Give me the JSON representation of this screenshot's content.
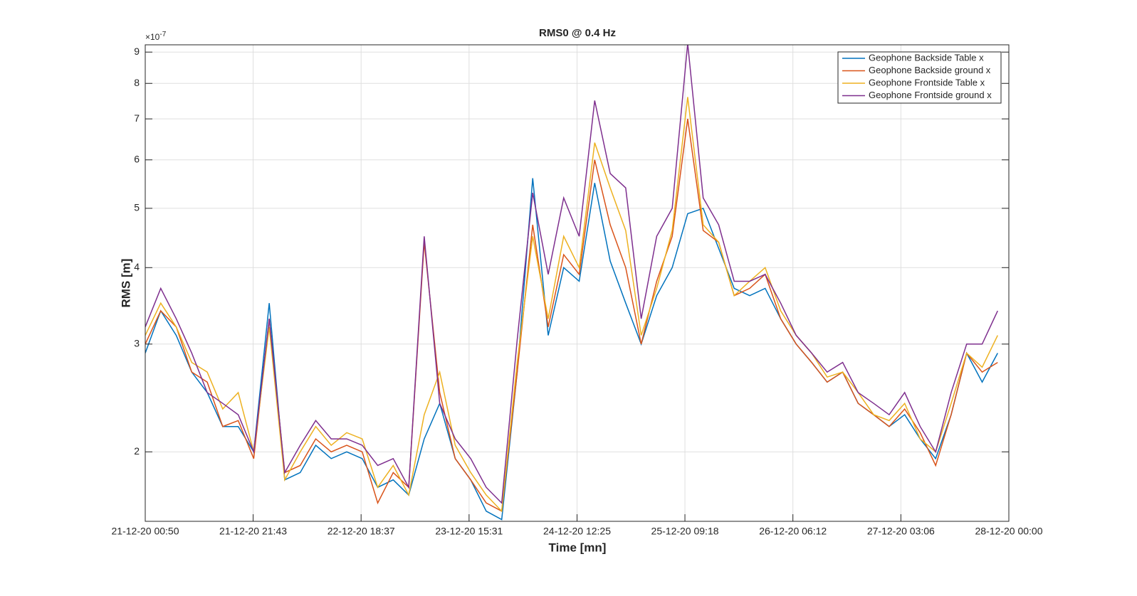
{
  "chart_data": {
    "type": "line",
    "title": "RMS0 @ 0.4 Hz",
    "xlabel": "Time [mn]",
    "ylabel": "RMS [m]",
    "y_multiplier": {
      "base": "×10",
      "exponent": "-7"
    },
    "yscale": "log",
    "grid": true,
    "legend": "upper right",
    "xlim": [
      "21-12-20 00:50",
      "28-12-20 00:00"
    ],
    "xticks": [
      "21-12-20 00:50",
      "21-12-20 21:43",
      "22-12-20 18:37",
      "23-12-20 15:31",
      "24-12-20 12:25",
      "25-12-20 09:18",
      "26-12-20 06:12",
      "27-12-20 03:06",
      "28-12-20 00:00"
    ],
    "ylim": [
      1.54,
      9.25
    ],
    "yticks": [
      2,
      3,
      4,
      5,
      6,
      7,
      8,
      9
    ],
    "x": [
      "21-12-20 00:50",
      "21-12-20 03:50",
      "21-12-20 06:50",
      "21-12-20 09:50",
      "21-12-20 12:50",
      "21-12-20 15:50",
      "21-12-20 18:50",
      "21-12-20 21:50",
      "22-12-20 00:50",
      "22-12-20 03:50",
      "22-12-20 06:50",
      "22-12-20 09:50",
      "22-12-20 12:50",
      "22-12-20 15:50",
      "22-12-20 18:50",
      "22-12-20 21:50",
      "23-12-20 00:50",
      "23-12-20 03:50",
      "23-12-20 06:50",
      "23-12-20 09:50",
      "23-12-20 12:50",
      "23-12-20 15:50",
      "23-12-20 18:50",
      "23-12-20 21:50",
      "24-12-20 00:50",
      "24-12-20 03:50",
      "24-12-20 06:50",
      "24-12-20 09:50",
      "24-12-20 12:50",
      "24-12-20 15:50",
      "24-12-20 18:50",
      "24-12-20 21:50",
      "25-12-20 00:50",
      "25-12-20 03:50",
      "25-12-20 06:50",
      "25-12-20 09:50",
      "25-12-20 12:50",
      "25-12-20 15:50",
      "25-12-20 18:50",
      "25-12-20 21:50",
      "26-12-20 00:50",
      "26-12-20 03:50",
      "26-12-20 06:50",
      "26-12-20 09:50",
      "26-12-20 12:50",
      "26-12-20 15:50",
      "26-12-20 18:50",
      "26-12-20 21:50",
      "27-12-20 00:50",
      "27-12-20 03:50",
      "27-12-20 06:50",
      "27-12-20 09:50",
      "27-12-20 12:50",
      "27-12-20 15:50",
      "27-12-20 18:50",
      "27-12-20 21:50"
    ],
    "series": [
      {
        "name": "Geophone Backside Table x",
        "color": "#0072bd",
        "values": [
          2.9,
          3.4,
          3.1,
          2.7,
          2.5,
          2.2,
          2.2,
          2.0,
          3.5,
          1.8,
          1.85,
          2.05,
          1.95,
          2.0,
          1.95,
          1.75,
          1.8,
          1.7,
          2.1,
          2.4,
          1.95,
          1.8,
          1.6,
          1.55,
          2.7,
          5.6,
          3.1,
          4.0,
          3.8,
          5.5,
          4.1,
          3.5,
          3.0,
          3.6,
          4.0,
          4.9,
          5.0,
          4.3,
          3.7,
          3.6,
          3.7,
          3.3,
          3.0,
          2.8,
          2.6,
          2.7,
          2.4,
          2.3,
          2.2,
          2.3,
          2.1,
          1.95,
          2.3,
          2.9,
          2.6,
          2.9
        ]
      },
      {
        "name": "Geophone Backside ground x",
        "color": "#d95319",
        "values": [
          3.0,
          3.4,
          3.2,
          2.7,
          2.6,
          2.2,
          2.25,
          1.95,
          3.3,
          1.85,
          1.9,
          2.1,
          2.0,
          2.05,
          2.0,
          1.65,
          1.85,
          1.75,
          4.4,
          2.5,
          1.95,
          1.8,
          1.65,
          1.6,
          2.7,
          4.7,
          3.2,
          4.2,
          3.9,
          6.0,
          4.7,
          4.0,
          3.0,
          3.8,
          4.5,
          7.0,
          4.6,
          4.4,
          3.6,
          3.7,
          3.9,
          3.3,
          3.0,
          2.8,
          2.6,
          2.7,
          2.4,
          2.3,
          2.2,
          2.35,
          2.15,
          1.9,
          2.3,
          2.9,
          2.7,
          2.8
        ]
      },
      {
        "name": "Geophone Frontside Table x",
        "color": "#edb120",
        "values": [
          3.1,
          3.5,
          3.2,
          2.8,
          2.7,
          2.35,
          2.5,
          2.0,
          3.2,
          1.8,
          2.0,
          2.2,
          2.05,
          2.15,
          2.1,
          1.75,
          1.9,
          1.7,
          2.3,
          2.7,
          2.05,
          1.85,
          1.7,
          1.6,
          2.8,
          4.5,
          3.3,
          4.5,
          4.0,
          6.4,
          5.4,
          4.6,
          3.1,
          3.7,
          4.6,
          7.6,
          4.7,
          4.4,
          3.6,
          3.8,
          4.0,
          3.4,
          3.1,
          2.9,
          2.65,
          2.7,
          2.5,
          2.3,
          2.25,
          2.4,
          2.1,
          2.0,
          2.4,
          2.9,
          2.75,
          3.1
        ]
      },
      {
        "name": "Geophone Frontside ground x",
        "color": "#7e2f8e",
        "values": [
          3.2,
          3.7,
          3.3,
          2.9,
          2.5,
          2.4,
          2.3,
          2.0,
          3.3,
          1.85,
          2.05,
          2.25,
          2.1,
          2.1,
          2.05,
          1.9,
          1.95,
          1.75,
          4.5,
          2.4,
          2.1,
          1.95,
          1.75,
          1.65,
          3.05,
          5.3,
          3.9,
          5.2,
          4.5,
          7.5,
          5.7,
          5.4,
          3.3,
          4.5,
          5.0,
          9.3,
          5.2,
          4.7,
          3.8,
          3.8,
          3.9,
          3.5,
          3.1,
          2.9,
          2.7,
          2.8,
          2.5,
          2.4,
          2.3,
          2.5,
          2.2,
          2.0,
          2.5,
          3.0,
          3.0,
          3.4
        ]
      }
    ]
  }
}
